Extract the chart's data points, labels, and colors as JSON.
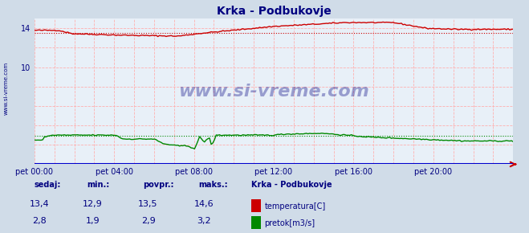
{
  "title": "Krka - Podbukovje",
  "bg_color": "#d0dce8",
  "plot_bg_color": "#e8f0f8",
  "title_color": "#000080",
  "axis_label_color": "#000080",
  "grid_color": "#ffaaaa",
  "x_labels": [
    "pet 00:00",
    "pet 04:00",
    "pet 08:00",
    "pet 12:00",
    "pet 16:00",
    "pet 20:00"
  ],
  "x_ticks_norm": [
    0.0,
    0.1667,
    0.3333,
    0.5,
    0.6667,
    0.8333
  ],
  "y_min": 0,
  "y_max": 15,
  "y_ticks": [
    14
  ],
  "y_label_10": 10,
  "temp_avg": 13.5,
  "temp_min": 12.9,
  "temp_max": 14.6,
  "flow_avg": 2.9,
  "flow_min": 1.9,
  "flow_max": 3.2,
  "temp_color": "#cc0000",
  "flow_color": "#008800",
  "watermark": "www.si-vreme.com",
  "watermark_color": "#000080",
  "watermark_alpha": 0.35,
  "legend_title": "Krka - Podbukovje",
  "bottom_labels": [
    "sedaj:",
    "min.:",
    "povpr.:",
    "maks.:"
  ],
  "bottom_values_temp": [
    "13,4",
    "12,9",
    "13,5",
    "14,6"
  ],
  "bottom_values_flow": [
    "2,8",
    "1,9",
    "2,9",
    "3,2"
  ],
  "bottom_label_temp": "temperatura[C]",
  "bottom_label_flow": "pretok[m3/s]",
  "axis_x_color": "#0000cc",
  "arrow_color": "#cc0000"
}
